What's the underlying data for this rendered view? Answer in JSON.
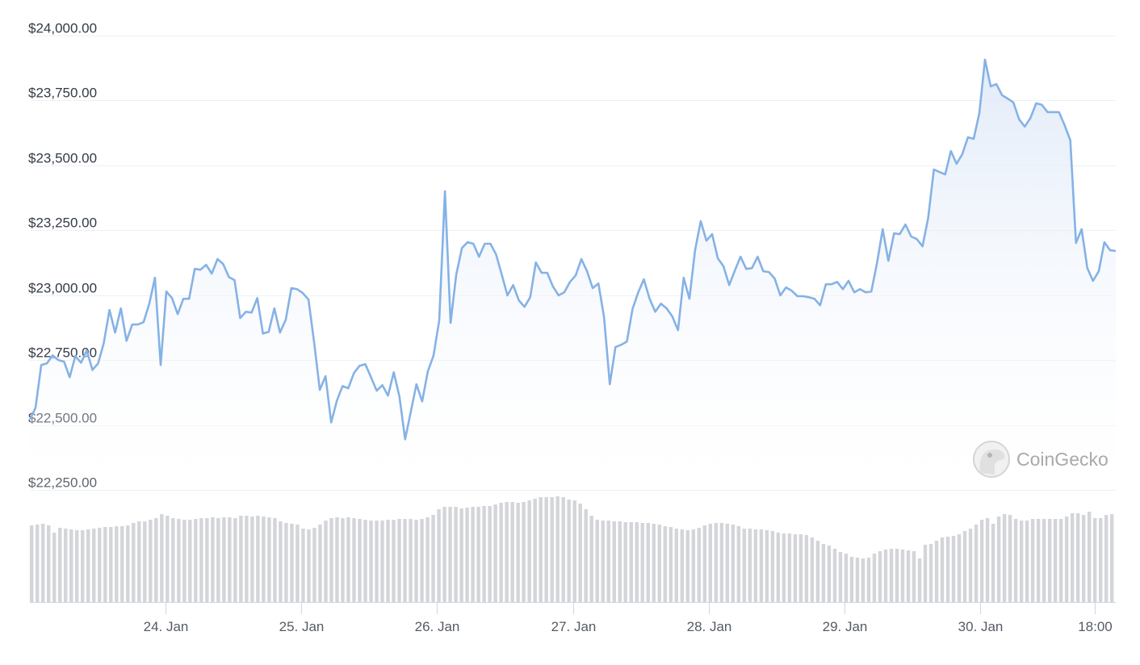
{
  "chart_data": {
    "type": "line",
    "series": [
      {
        "kind": "price",
        "color": "#85b2e6",
        "values": [
          22520,
          22566,
          22731,
          22737,
          22768,
          22750,
          22744,
          22684,
          22765,
          22740,
          22787,
          22712,
          22737,
          22815,
          22943,
          22856,
          22949,
          22824,
          22887,
          22887,
          22896,
          22967,
          23067,
          22731,
          23014,
          22989,
          22927,
          22986,
          22986,
          23101,
          23098,
          23117,
          23083,
          23139,
          23120,
          23070,
          23058,
          22912,
          22936,
          22933,
          22989,
          22852,
          22859,
          22949,
          22856,
          22905,
          23027,
          23023,
          23008,
          22983,
          22818,
          22635,
          22688,
          22510,
          22594,
          22650,
          22641,
          22700,
          22728,
          22734,
          22684,
          22632,
          22653,
          22613,
          22703,
          22610,
          22445,
          22551,
          22657,
          22591,
          22706,
          22768,
          22902,
          23400,
          22893,
          23079,
          23182,
          23204,
          23198,
          23148,
          23198,
          23198,
          23157,
          23079,
          22999,
          23039,
          22980,
          22955,
          22992,
          23126,
          23086,
          23086,
          23033,
          22999,
          23011,
          23051,
          23076,
          23139,
          23092,
          23027,
          23045,
          22915,
          22657,
          22800,
          22809,
          22821,
          22946,
          23011,
          23061,
          22986,
          22936,
          22967,
          22949,
          22918,
          22865,
          23067,
          22986,
          23173,
          23285,
          23210,
          23235,
          23142,
          23111,
          23039,
          23095,
          23148,
          23101,
          23104,
          23148,
          23092,
          23089,
          23064,
          22999,
          23030,
          23017,
          22996,
          22996,
          22992,
          22986,
          22961,
          23042,
          23042,
          23051,
          23023,
          23055,
          23011,
          23023,
          23011,
          23014,
          23123,
          23254,
          23132,
          23238,
          23235,
          23272,
          23226,
          23216,
          23188,
          23297,
          23484,
          23474,
          23465,
          23555,
          23506,
          23543,
          23608,
          23602,
          23701,
          23907,
          23804,
          23813,
          23770,
          23757,
          23742,
          23677,
          23649,
          23683,
          23739,
          23733,
          23705,
          23705,
          23705,
          23655,
          23596,
          23201,
          23254,
          23104,
          23055,
          23092,
          23204,
          23173,
          23170
        ]
      },
      {
        "kind": "volume",
        "type": "bar",
        "color": "#d3d5d9",
        "values": [
          95,
          96,
          97,
          95,
          86,
          92,
          91,
          90,
          89,
          89,
          90,
          91,
          92,
          93,
          93,
          94,
          94,
          95,
          98,
          100,
          100,
          102,
          104,
          109,
          107,
          104,
          103,
          102,
          102,
          103,
          104,
          104,
          105,
          104,
          105,
          105,
          104,
          107,
          107,
          106,
          107,
          106,
          105,
          104,
          100,
          98,
          97,
          96,
          91,
          90,
          92,
          96,
          101,
          104,
          105,
          104,
          105,
          104,
          103,
          102,
          101,
          101,
          101,
          102,
          102,
          103,
          103,
          103,
          102,
          103,
          105,
          108,
          115,
          118,
          118,
          118,
          116,
          117,
          118,
          118,
          119,
          119,
          121,
          123,
          124,
          124,
          123,
          124,
          126,
          128,
          130,
          130,
          130,
          131,
          130,
          127,
          126,
          122,
          115,
          107,
          102,
          101,
          101,
          100,
          100,
          99,
          99,
          99,
          98,
          98,
          97,
          96,
          94,
          93,
          91,
          90,
          89,
          90,
          92,
          95,
          97,
          98,
          98,
          97,
          96,
          94,
          91,
          91,
          90,
          90,
          89,
          88,
          86,
          85,
          85,
          84,
          84,
          83,
          80,
          76,
          72,
          70,
          66,
          62,
          60,
          56,
          55,
          54,
          55,
          60,
          63,
          65,
          66,
          66,
          65,
          64,
          63,
          54,
          71,
          72,
          76,
          80,
          81,
          82,
          84,
          88,
          91,
          96,
          102,
          104,
          97,
          106,
          109,
          108,
          103,
          101,
          101,
          103,
          103,
          103,
          103,
          103,
          103,
          106,
          110,
          110,
          108,
          112,
          104,
          104,
          108,
          109
        ]
      }
    ],
    "x_range": [
      "23 Jan 00:00",
      "30 Jan 23:00"
    ],
    "ylim": [
      22250,
      24000
    ],
    "y_ticks": [
      "$24,000.00",
      "$23,750.00",
      "$23,500.00",
      "$23,250.00",
      "$23,000.00",
      "$22,750.00",
      "$22,500.00",
      "$22,250.00"
    ],
    "y_tick_values": [
      24000,
      23750,
      23500,
      23250,
      23000,
      22750,
      22500,
      22250
    ],
    "x_ticks": [
      "24. Jan",
      "25. Jan",
      "26. Jan",
      "27. Jan",
      "28. Jan",
      "29. Jan",
      "30. Jan",
      "18:00"
    ],
    "x_tick_days": [
      1,
      2,
      3,
      4,
      5,
      6,
      7,
      7.75
    ],
    "grid": true,
    "fill": "gradient",
    "watermark": "CoinGecko"
  }
}
